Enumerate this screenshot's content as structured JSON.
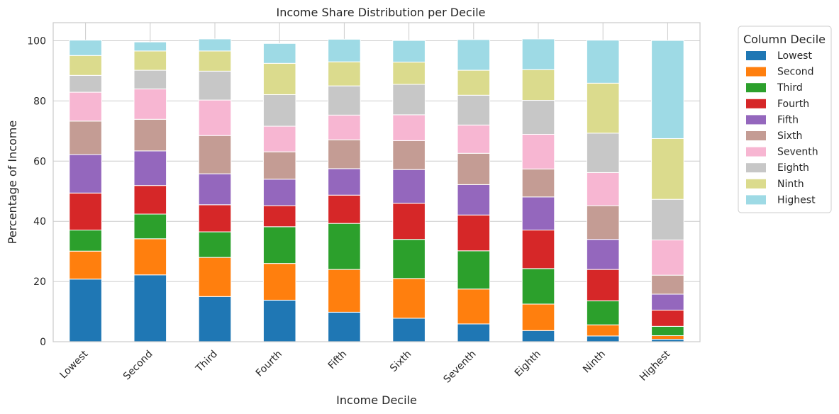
{
  "chart_data": {
    "type": "bar",
    "stacked": true,
    "title": "Income Share Distribution per Decile",
    "xlabel": "Income Decile",
    "ylabel": "Percentage of Income",
    "ylim": [
      0,
      106
    ],
    "yticks": [
      0,
      20,
      40,
      60,
      80,
      100
    ],
    "grid": true,
    "legend_title": "Column Decile",
    "legend_position": "outside-top-right",
    "categories": [
      "Lowest",
      "Second",
      "Third",
      "Fourth",
      "Fifth",
      "Sixth",
      "Seventh",
      "Eighth",
      "Ninth",
      "Highest"
    ],
    "series": [
      {
        "name": "Lowest",
        "color": "#1f77b4",
        "values": [
          20.8,
          22.2,
          15.0,
          13.8,
          9.8,
          7.8,
          5.9,
          3.7,
          1.9,
          0.8
        ]
      },
      {
        "name": "Second",
        "color": "#ff7f0e",
        "values": [
          9.3,
          12.0,
          13.0,
          12.2,
          14.2,
          13.2,
          11.6,
          8.8,
          3.7,
          1.2
        ]
      },
      {
        "name": "Third",
        "color": "#2ca02c",
        "values": [
          7.0,
          8.2,
          8.5,
          12.2,
          15.3,
          13.0,
          12.7,
          11.8,
          8.0,
          3.1
        ]
      },
      {
        "name": "Fourth",
        "color": "#d62728",
        "values": [
          12.3,
          9.5,
          9.0,
          7.0,
          9.4,
          12.0,
          11.9,
          12.8,
          10.4,
          5.4
        ]
      },
      {
        "name": "Fifth",
        "color": "#9467bd",
        "values": [
          12.8,
          11.5,
          10.3,
          8.8,
          8.8,
          11.2,
          10.1,
          11.0,
          10.0,
          5.3
        ]
      },
      {
        "name": "Sixth",
        "color": "#c49c94",
        "values": [
          11.1,
          10.5,
          12.7,
          9.1,
          9.6,
          9.6,
          10.4,
          9.3,
          11.2,
          6.3
        ]
      },
      {
        "name": "Seventh",
        "color": "#f7b6d2",
        "values": [
          9.6,
          10.1,
          11.8,
          8.5,
          8.2,
          8.6,
          9.4,
          11.5,
          11.0,
          11.7
        ]
      },
      {
        "name": "Eighth",
        "color": "#c7c7c7",
        "values": [
          5.6,
          6.2,
          9.6,
          10.5,
          9.7,
          10.1,
          9.9,
          11.3,
          13.1,
          13.5
        ]
      },
      {
        "name": "Ninth",
        "color": "#dbdb8d",
        "values": [
          6.6,
          6.4,
          6.7,
          10.4,
          8.0,
          7.4,
          8.3,
          10.2,
          16.6,
          20.2
        ]
      },
      {
        "name": "Highest",
        "color": "#9edae5",
        "values": [
          5.1,
          3.0,
          4.0,
          6.6,
          7.5,
          7.2,
          10.2,
          10.2,
          14.3,
          32.6
        ]
      }
    ]
  }
}
